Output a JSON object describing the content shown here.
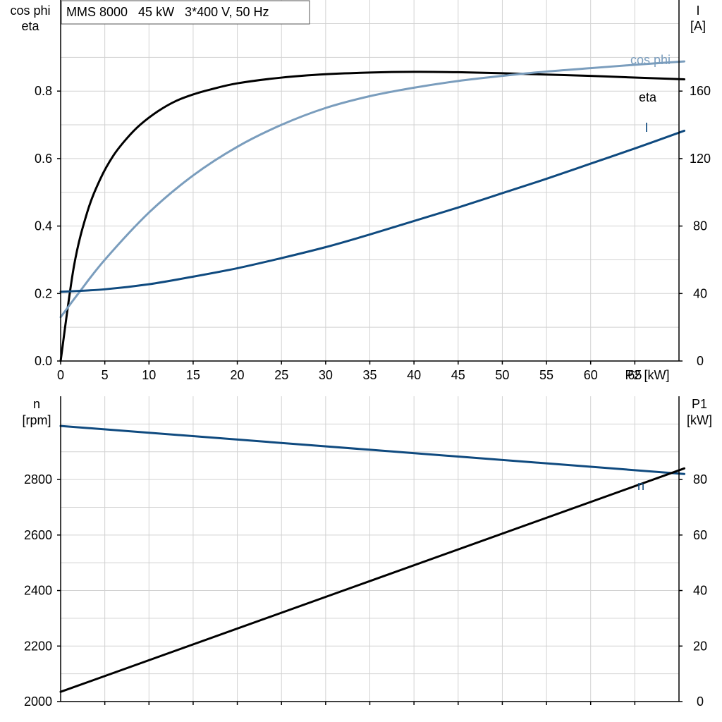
{
  "title_box": "MMS 8000   45 kW   3*400 V, 50 Hz",
  "colors": {
    "eta": "#000000",
    "cosphi": "#7a9dbd",
    "current": "#0f4a7f",
    "speed": "#0f4a7f",
    "p1": "#000000"
  },
  "chart_data": [
    {
      "type": "line",
      "xlabel": "P2 [kW]",
      "xlim": [
        0,
        70
      ],
      "x_ticks": [
        "0",
        "5",
        "10",
        "15",
        "20",
        "25",
        "30",
        "35",
        "40",
        "45",
        "50",
        "55",
        "60",
        "65"
      ],
      "ylabel_left": [
        "cos phi",
        "eta"
      ],
      "ylim_left": [
        0,
        1.07
      ],
      "y_ticks_left": [
        "0.0",
        "0.2",
        "0.4",
        "0.6",
        "0.8"
      ],
      "ylabel_right": [
        "I",
        "[A]"
      ],
      "ylim_right": [
        0,
        214
      ],
      "y_ticks_right": [
        "0",
        "40",
        "80",
        "120",
        "160"
      ],
      "grid": true,
      "series": [
        {
          "name": "eta",
          "axis": "left",
          "color": "#000000",
          "x": [
            0,
            1.5,
            3,
            4.5,
            6,
            7.5,
            9,
            11,
            13,
            15,
            17,
            20,
            25,
            30,
            35,
            40,
            45,
            50,
            55,
            60,
            65,
            70.6
          ],
          "y": [
            0,
            0.28,
            0.44,
            0.54,
            0.61,
            0.66,
            0.7,
            0.74,
            0.77,
            0.79,
            0.805,
            0.823,
            0.84,
            0.85,
            0.855,
            0.857,
            0.856,
            0.853,
            0.849,
            0.845,
            0.84,
            0.835
          ]
        },
        {
          "name": "cos phi",
          "axis": "left",
          "color": "#7a9dbd",
          "x": [
            0,
            2,
            5,
            10,
            15,
            20,
            25,
            30,
            35,
            40,
            45,
            50,
            55,
            60,
            65,
            70.6
          ],
          "y": [
            0.13,
            0.2,
            0.3,
            0.44,
            0.55,
            0.635,
            0.7,
            0.75,
            0.785,
            0.81,
            0.83,
            0.845,
            0.858,
            0.868,
            0.878,
            0.888
          ]
        },
        {
          "name": "I",
          "axis": "right",
          "color": "#0f4a7f",
          "x": [
            0,
            5,
            10,
            15,
            20,
            25,
            30,
            35,
            40,
            45,
            50,
            55,
            60,
            65,
            70.6
          ],
          "y": [
            41,
            42.5,
            45.5,
            50,
            55,
            61,
            67.5,
            75,
            83,
            91,
            99.5,
            108,
            117,
            126,
            136.5
          ]
        }
      ]
    },
    {
      "type": "line",
      "xlim": [
        0,
        70
      ],
      "ylabel_left": [
        "n",
        "[rpm]"
      ],
      "ylim_left": [
        2000,
        3100
      ],
      "y_ticks_left": [
        "2000",
        "2200",
        "2400",
        "2600",
        "2800"
      ],
      "ylabel_right": [
        "P1",
        "[kW]"
      ],
      "ylim_right": [
        0,
        110
      ],
      "y_ticks_right": [
        "0",
        "20",
        "40",
        "60",
        "80"
      ],
      "grid": true,
      "series": [
        {
          "name": "n",
          "axis": "left",
          "color": "#0f4a7f",
          "x": [
            0,
            70.6
          ],
          "y": [
            2993,
            2820
          ]
        },
        {
          "name": "",
          "axis": "right",
          "color": "#000000",
          "x": [
            0,
            70.6
          ],
          "y": [
            3.5,
            84
          ]
        }
      ]
    }
  ]
}
